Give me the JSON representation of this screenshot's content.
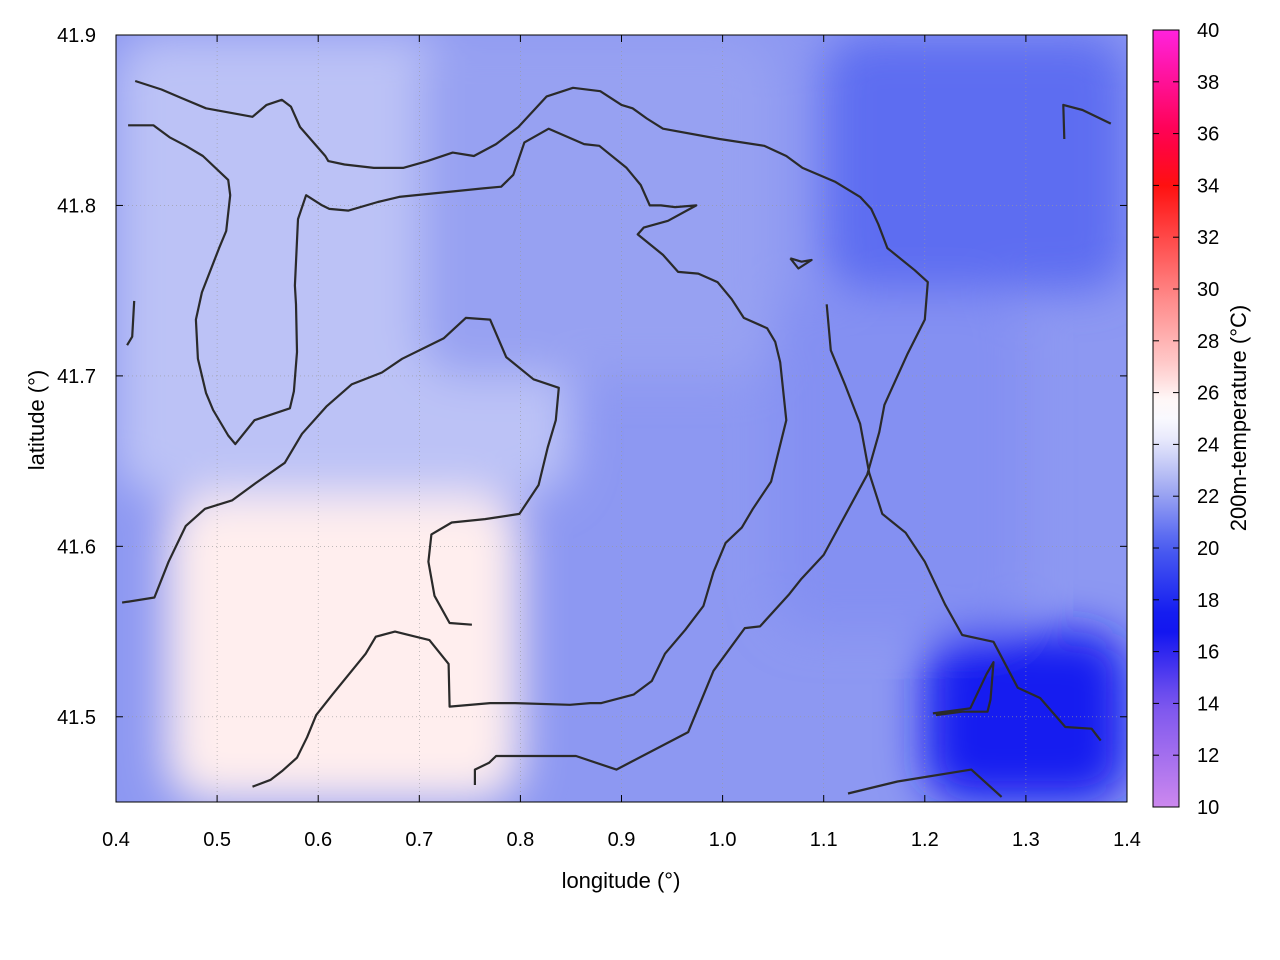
{
  "chart_data": {
    "type": "heatmap",
    "title": "",
    "xlabel": "longitude (°)",
    "ylabel": "latitude (°)",
    "colorbar_label": "200m-temperature (°C)",
    "xlim": [
      0.4,
      1.4
    ],
    "ylim": [
      41.45,
      41.9
    ],
    "x_ticks": [
      "0.4",
      "0.5",
      "0.6",
      "0.7",
      "0.8",
      "0.9",
      "1.0",
      "1.1",
      "1.2",
      "1.3",
      "1.4"
    ],
    "y_ticks": [
      "41.5",
      "41.6",
      "41.7",
      "41.8",
      "41.9"
    ],
    "colorbar_ticks": [
      "10",
      "12",
      "14",
      "16",
      "18",
      "20",
      "22",
      "24",
      "26",
      "28",
      "30",
      "32",
      "34",
      "36",
      "38",
      "40"
    ],
    "colorbar_range": [
      10,
      40
    ],
    "grid": true,
    "colormap": [
      {
        "t": 10,
        "color": "#cc88ee"
      },
      {
        "t": 14,
        "color": "#7a55ee"
      },
      {
        "t": 17,
        "color": "#0a10f0"
      },
      {
        "t": 20,
        "color": "#4a5cf0"
      },
      {
        "t": 22.5,
        "color": "#aab2f3"
      },
      {
        "t": 24.5,
        "color": "#f2f2fd"
      },
      {
        "t": 25.5,
        "color": "#ffffff"
      },
      {
        "t": 27,
        "color": "#ffcccc"
      },
      {
        "t": 30,
        "color": "#ff8080"
      },
      {
        "t": 34,
        "color": "#ff1010"
      },
      {
        "t": 36,
        "color": "#ff0050"
      },
      {
        "t": 40,
        "color": "#ff22dd"
      }
    ],
    "temperature_regions": [
      {
        "zone": "southwest warm pocket",
        "lon": [
          0.45,
          0.8
        ],
        "lat": [
          41.45,
          41.63
        ],
        "temp": 26.0
      },
      {
        "zone": "west and central plain",
        "lon": [
          0.4,
          0.85
        ],
        "lat": [
          41.63,
          41.9
        ],
        "temp": 23.0
      },
      {
        "zone": "central north",
        "lon": [
          0.7,
          1.05
        ],
        "lat": [
          41.7,
          41.9
        ],
        "temp": 22.0
      },
      {
        "zone": "east central",
        "lon": [
          1.05,
          1.3
        ],
        "lat": [
          41.55,
          41.75
        ],
        "temp": 21.5
      },
      {
        "zone": "northeast",
        "lon": [
          1.1,
          1.4
        ],
        "lat": [
          41.75,
          41.9
        ],
        "temp": 20.5
      },
      {
        "zone": "southeast coast",
        "lon": [
          1.2,
          1.4
        ],
        "lat": [
          41.45,
          41.55
        ],
        "temp": 17.5
      }
    ],
    "contours": [
      [
        [
          0.419,
          41.873
        ],
        [
          0.445,
          41.868
        ],
        [
          0.465,
          41.863
        ],
        [
          0.489,
          41.857
        ],
        [
          0.535,
          41.852
        ],
        [
          0.549,
          41.859
        ],
        [
          0.564,
          41.862
        ],
        [
          0.573,
          41.858
        ],
        [
          0.582,
          41.846
        ],
        [
          0.607,
          41.829
        ],
        [
          0.61,
          41.826
        ],
        [
          0.626,
          41.824
        ],
        [
          0.655,
          41.822
        ],
        [
          0.684,
          41.822
        ],
        [
          0.708,
          41.826
        ],
        [
          0.733,
          41.831
        ],
        [
          0.754,
          41.829
        ],
        [
          0.776,
          41.836
        ],
        [
          0.798,
          41.846
        ],
        [
          0.826,
          41.864
        ],
        [
          0.852,
          41.869
        ],
        [
          0.879,
          41.867
        ],
        [
          0.9,
          41.859
        ],
        [
          0.911,
          41.857
        ],
        [
          0.925,
          41.851
        ],
        [
          0.941,
          41.845
        ],
        [
          0.997,
          41.839
        ],
        [
          1.041,
          41.835
        ],
        [
          1.063,
          41.829
        ],
        [
          1.079,
          41.822
        ],
        [
          1.111,
          41.814
        ],
        [
          1.136,
          41.805
        ],
        [
          1.147,
          41.798
        ],
        [
          1.154,
          41.789
        ],
        [
          1.163,
          41.775
        ],
        [
          1.19,
          41.762
        ],
        [
          1.203,
          41.755
        ],
        [
          1.2,
          41.733
        ],
        [
          1.183,
          41.713
        ],
        [
          1.16,
          41.683
        ],
        [
          1.155,
          41.667
        ],
        [
          1.143,
          41.642
        ],
        [
          1.1,
          41.595
        ],
        [
          1.078,
          41.581
        ],
        [
          1.066,
          41.572
        ],
        [
          1.037,
          41.553
        ],
        [
          1.022,
          41.552
        ],
        [
          0.991,
          41.527
        ],
        [
          0.966,
          41.491
        ],
        [
          0.911,
          41.474
        ],
        [
          0.895,
          41.469
        ],
        [
          0.855,
          41.477
        ],
        [
          0.81,
          41.477
        ],
        [
          0.776,
          41.477
        ],
        [
          0.769,
          41.473
        ],
        [
          0.755,
          41.469
        ],
        [
          0.755,
          41.46
        ]
      ],
      [
        [
          0.412,
          41.847
        ],
        [
          0.437,
          41.847
        ],
        [
          0.453,
          41.84
        ],
        [
          0.469,
          41.835
        ],
        [
          0.486,
          41.829
        ],
        [
          0.511,
          41.815
        ],
        [
          0.513,
          41.806
        ],
        [
          0.509,
          41.785
        ],
        [
          0.502,
          41.775
        ],
        [
          0.485,
          41.749
        ],
        [
          0.479,
          41.733
        ],
        [
          0.481,
          41.71
        ],
        [
          0.489,
          41.69
        ],
        [
          0.496,
          41.68
        ],
        [
          0.511,
          41.665
        ],
        [
          0.518,
          41.66
        ],
        [
          0.537,
          41.674
        ],
        [
          0.572,
          41.681
        ],
        [
          0.576,
          41.691
        ],
        [
          0.579,
          41.714
        ],
        [
          0.578,
          41.742
        ],
        [
          0.577,
          41.753
        ],
        [
          0.58,
          41.792
        ],
        [
          0.588,
          41.806
        ],
        [
          0.604,
          41.8
        ],
        [
          0.611,
          41.798
        ],
        [
          0.63,
          41.797
        ],
        [
          0.659,
          41.802
        ],
        [
          0.68,
          41.805
        ],
        [
          0.713,
          41.807
        ],
        [
          0.763,
          41.81
        ],
        [
          0.781,
          41.811
        ],
        [
          0.793,
          41.818
        ],
        [
          0.804,
          41.837
        ],
        [
          0.828,
          41.845
        ],
        [
          0.863,
          41.836
        ],
        [
          0.878,
          41.835
        ],
        [
          0.905,
          41.822
        ],
        [
          0.919,
          41.812
        ],
        [
          0.928,
          41.8
        ],
        [
          0.939,
          41.8
        ],
        [
          0.953,
          41.799
        ],
        [
          0.974,
          41.8
        ],
        [
          0.946,
          41.791
        ],
        [
          0.922,
          41.787
        ],
        [
          0.916,
          41.783
        ],
        [
          0.941,
          41.771
        ],
        [
          0.956,
          41.761
        ],
        [
          0.976,
          41.76
        ],
        [
          0.995,
          41.755
        ],
        [
          1.009,
          41.745
        ],
        [
          1.021,
          41.734
        ],
        [
          1.044,
          41.728
        ],
        [
          1.052,
          41.72
        ],
        [
          1.057,
          41.708
        ],
        [
          1.063,
          41.674
        ],
        [
          1.048,
          41.638
        ],
        [
          1.03,
          41.622
        ],
        [
          1.019,
          41.611
        ],
        [
          1.003,
          41.602
        ],
        [
          0.991,
          41.585
        ],
        [
          0.981,
          41.565
        ],
        [
          0.963,
          41.551
        ],
        [
          0.943,
          41.537
        ],
        [
          0.93,
          41.521
        ],
        [
          0.912,
          41.513
        ],
        [
          0.88,
          41.508
        ],
        [
          0.869,
          41.508
        ],
        [
          0.849,
          41.507
        ],
        [
          0.795,
          41.508
        ],
        [
          0.77,
          41.508
        ],
        [
          0.73,
          41.506
        ],
        [
          0.729,
          41.531
        ],
        [
          0.71,
          41.545
        ],
        [
          0.676,
          41.55
        ],
        [
          0.657,
          41.547
        ],
        [
          0.647,
          41.537
        ],
        [
          0.614,
          41.513
        ],
        [
          0.598,
          41.501
        ],
        [
          0.589,
          41.488
        ],
        [
          0.579,
          41.476
        ],
        [
          0.564,
          41.468
        ],
        [
          0.553,
          41.463
        ],
        [
          0.535,
          41.459
        ]
      ],
      [
        [
          0.406,
          41.567
        ],
        [
          0.438,
          41.57
        ],
        [
          0.452,
          41.591
        ],
        [
          0.469,
          41.612
        ],
        [
          0.488,
          41.622
        ],
        [
          0.515,
          41.627
        ],
        [
          0.538,
          41.637
        ],
        [
          0.567,
          41.649
        ],
        [
          0.584,
          41.666
        ],
        [
          0.608,
          41.682
        ],
        [
          0.633,
          41.695
        ],
        [
          0.663,
          41.702
        ],
        [
          0.683,
          41.71
        ],
        [
          0.724,
          41.722
        ],
        [
          0.746,
          41.734
        ],
        [
          0.77,
          41.733
        ],
        [
          0.786,
          41.711
        ],
        [
          0.813,
          41.698
        ],
        [
          0.838,
          41.693
        ],
        [
          0.835,
          41.674
        ],
        [
          0.827,
          41.658
        ],
        [
          0.818,
          41.636
        ],
        [
          0.799,
          41.619
        ],
        [
          0.765,
          41.616
        ],
        [
          0.732,
          41.614
        ],
        [
          0.712,
          41.607
        ],
        [
          0.709,
          41.591
        ],
        [
          0.715,
          41.571
        ],
        [
          0.73,
          41.555
        ],
        [
          0.752,
          41.554
        ]
      ],
      [
        [
          1.338,
          41.839
        ],
        [
          1.337,
          41.859
        ],
        [
          1.356,
          41.856
        ],
        [
          1.384,
          41.848
        ]
      ],
      [
        [
          1.208,
          41.502
        ],
        [
          1.245,
          41.505
        ],
        [
          1.261,
          41.525
        ],
        [
          1.268,
          41.532
        ],
        [
          1.265,
          41.51
        ],
        [
          1.262,
          41.503
        ],
        [
          1.237,
          41.503
        ],
        [
          1.211,
          41.501
        ]
      ],
      [
        [
          1.067,
          41.769
        ],
        [
          1.078,
          41.767
        ],
        [
          1.088,
          41.768
        ],
        [
          1.075,
          41.763
        ],
        [
          1.067,
          41.769
        ]
      ],
      [
        [
          0.418,
          41.744
        ],
        [
          0.416,
          41.723
        ],
        [
          0.411,
          41.718
        ]
      ],
      [
        [
          1.124,
          41.455
        ],
        [
          1.173,
          41.462
        ],
        [
          1.246,
          41.469
        ],
        [
          1.276,
          41.453
        ]
      ],
      [
        [
          1.103,
          41.742
        ],
        [
          1.107,
          41.715
        ],
        [
          1.121,
          41.695
        ],
        [
          1.136,
          41.672
        ],
        [
          1.145,
          41.643
        ],
        [
          1.158,
          41.619
        ],
        [
          1.181,
          41.608
        ],
        [
          1.2,
          41.591
        ],
        [
          1.22,
          41.566
        ],
        [
          1.237,
          41.548
        ],
        [
          1.268,
          41.544
        ],
        [
          1.292,
          41.517
        ],
        [
          1.314,
          41.511
        ],
        [
          1.339,
          41.494
        ],
        [
          1.365,
          41.493
        ],
        [
          1.374,
          41.486
        ]
      ]
    ]
  }
}
